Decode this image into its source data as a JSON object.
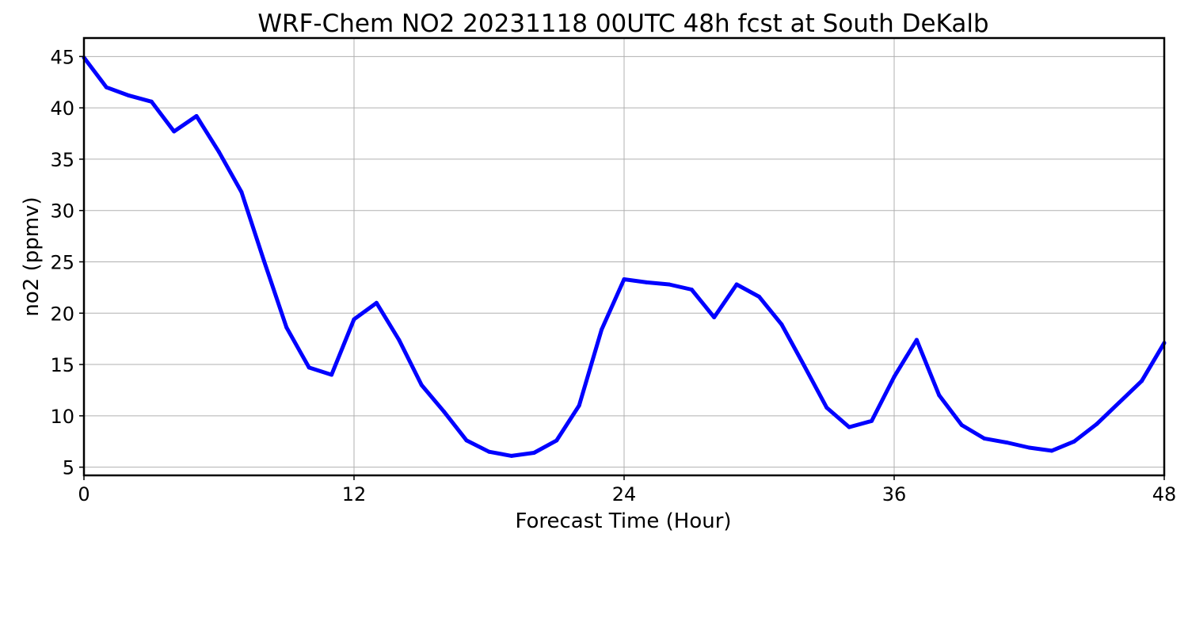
{
  "chart_data": {
    "type": "line",
    "title": "WRF-Chem NO2  20231118 00UTC 48h fcst at South DeKalb",
    "xlabel": "Forecast Time (Hour)",
    "ylabel": "no2  (ppmv)",
    "xlim": [
      0,
      48
    ],
    "ylim": [
      4.2,
      46.8
    ],
    "xticks": [
      0,
      12,
      24,
      36,
      48
    ],
    "yticks": [
      5,
      10,
      15,
      20,
      25,
      30,
      35,
      40,
      45
    ],
    "grid": true,
    "line_color": "#0000ff",
    "series": [
      {
        "x": [
          0,
          1,
          2,
          3,
          4,
          5,
          6,
          7,
          8,
          9,
          10,
          11,
          12,
          13,
          14,
          15,
          16,
          17,
          18,
          19,
          20,
          21,
          22,
          23,
          24,
          25,
          26,
          27,
          28,
          29,
          30,
          31,
          32,
          33,
          34,
          35,
          36,
          37,
          38,
          39,
          40,
          41,
          42,
          43,
          44,
          45,
          46,
          47,
          48
        ],
        "values": [
          44.9,
          42.0,
          41.2,
          40.6,
          37.7,
          39.2,
          35.7,
          31.8,
          25.1,
          18.6,
          14.7,
          14.0,
          19.4,
          21.0,
          17.4,
          13.0,
          10.4,
          7.6,
          6.5,
          6.1,
          6.4,
          7.6,
          11.0,
          18.4,
          23.3,
          23.0,
          22.8,
          22.3,
          19.6,
          22.8,
          21.6,
          18.9,
          14.9,
          10.8,
          8.9,
          9.5,
          13.8,
          17.4,
          12.0,
          9.1,
          7.8,
          7.4,
          6.9,
          6.6,
          7.5,
          9.2,
          11.3,
          13.4,
          17.1
        ]
      }
    ]
  }
}
